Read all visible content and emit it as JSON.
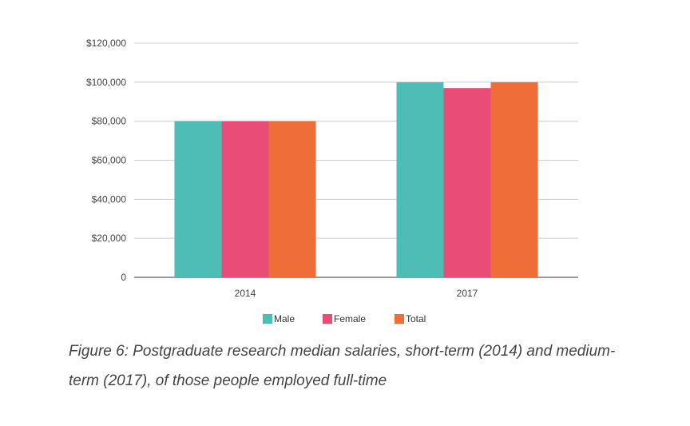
{
  "chart_data": {
    "type": "bar",
    "title": "",
    "xlabel": "",
    "ylabel": "",
    "categories": [
      "2014",
      "2017"
    ],
    "series": [
      {
        "name": "Male",
        "values": [
          80000,
          100000
        ],
        "color": "#4dbdb5"
      },
      {
        "name": "Female",
        "values": [
          80000,
          97000
        ],
        "color": "#e94c77"
      },
      {
        "name": "Total",
        "values": [
          80000,
          100000
        ],
        "color": "#ef6d38"
      }
    ],
    "ylim": [
      0,
      120000
    ],
    "y_ticks": [
      {
        "value": 0,
        "label": "0"
      },
      {
        "value": 20000,
        "label": "$20,000"
      },
      {
        "value": 40000,
        "label": "$40,000"
      },
      {
        "value": 60000,
        "label": "$60,000"
      },
      {
        "value": 80000,
        "label": "$80,000"
      },
      {
        "value": 100000,
        "label": "$100,000"
      },
      {
        "value": 120000,
        "label": "$120,000"
      }
    ],
    "grid": true,
    "legend_position": "bottom"
  },
  "caption": "Figure 6: Postgraduate research median salaries, short-term (2014) and medium-term (2017), of those people employed full-time"
}
